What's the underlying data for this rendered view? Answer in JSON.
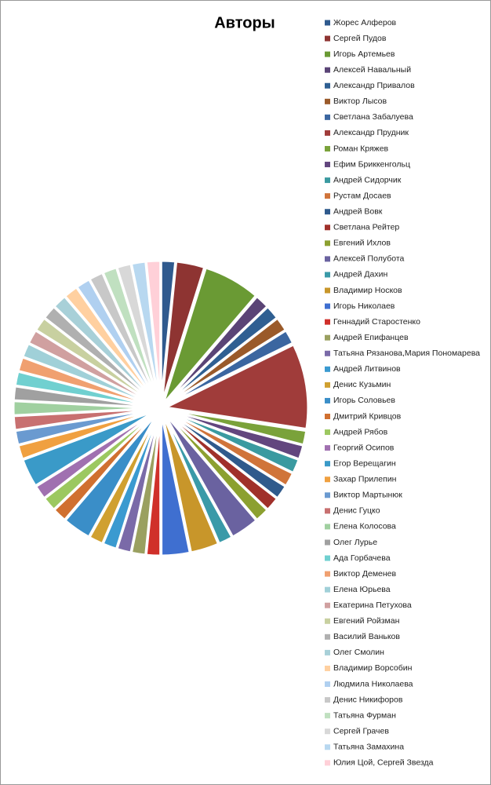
{
  "chart_data": {
    "type": "pie",
    "title": "Авторы",
    "categories": [
      "Жорес Алферов",
      "Сергей Пудов",
      "Игорь Артемьев",
      "Алексей Навальный",
      "Александр Привалов",
      "Виктор Лысов",
      "Светлана Забалуева",
      "Александр Прудник",
      "Роман Кряжев",
      "Ефим Бриккенгольц",
      "Андрей Сидорчик",
      "Рустам Досаев",
      "Андрей Вовк",
      "Светлана Рейтер",
      "Евгений Ихлов",
      "Алексей Полубота",
      "Андрей Дахин",
      "Владимир Носков",
      "Игорь Николаев",
      "Геннадий Старостенко",
      "Андрей Епифанцев",
      "Татьяна Рязанова,Мария Пономарева",
      "Андрей Литвинов",
      "Денис Кузьмин",
      "Игорь Соловьев",
      "Дмитрий Кривцов",
      "Андрей Рябов",
      "Георгий Осипов",
      "Егор Верещагин",
      "Захар Прилепин",
      "Виктор Мартынюк",
      "Денис Гуцко",
      "Елена Колосова",
      "Олег Лурье",
      "Ада Горбачева",
      "Виктор Деменев",
      "Елена Юрьева",
      "Екатерина Петухова",
      "Евгений Ройзман",
      "Василий Ваньков",
      "Олег Смолин",
      "Владимир Ворсобин",
      "Людмила Николаева",
      "Денис Никифоров",
      "Татьяна Фурман",
      "Сергей Грачев",
      "Татьяна Замахина",
      "Юлия Цой, Сергей Звезда"
    ],
    "values": [
      1,
      2,
      4,
      1,
      1,
      1,
      1,
      6,
      1,
      1,
      1,
      1,
      1,
      1,
      1,
      2,
      1,
      2,
      2,
      1,
      1,
      1,
      1,
      1,
      2,
      1,
      1,
      1,
      2,
      1,
      1,
      1,
      1,
      1,
      1,
      1,
      1,
      1,
      1,
      1,
      1,
      1,
      1,
      1,
      1,
      1,
      1,
      1
    ],
    "colors": [
      "#2f5a8e",
      "#8e3432",
      "#6a9a34",
      "#5a4476",
      "#2f5f92",
      "#9a5a2a",
      "#3b66a0",
      "#a03c3a",
      "#7aa23a",
      "#62467e",
      "#3a9aa0",
      "#d0743a",
      "#2f5a8c",
      "#a0302a",
      "#8ca030",
      "#6a62a0",
      "#3a9aa8",
      "#c8962a",
      "#3f6fd0",
      "#d0302a",
      "#9aa060",
      "#7a6aa8",
      "#3a9ad0",
      "#d0a030",
      "#3a8ec8",
      "#d07030",
      "#9cc860",
      "#a070b0",
      "#3a9ac8",
      "#f0a040",
      "#6a9ad0",
      "#c87070",
      "#a0d0a0",
      "#a0a0a0",
      "#70d0d0",
      "#f0a070",
      "#a0d0d8",
      "#d0a0a0",
      "#c8d0a0",
      "#b0b0b0",
      "#a8d0d8",
      "#ffd0a0",
      "#b0d0f0",
      "#c8c8c8",
      "#c0e0c0",
      "#d8d8d8",
      "#b8d8f0",
      "#ffd0d8"
    ]
  }
}
